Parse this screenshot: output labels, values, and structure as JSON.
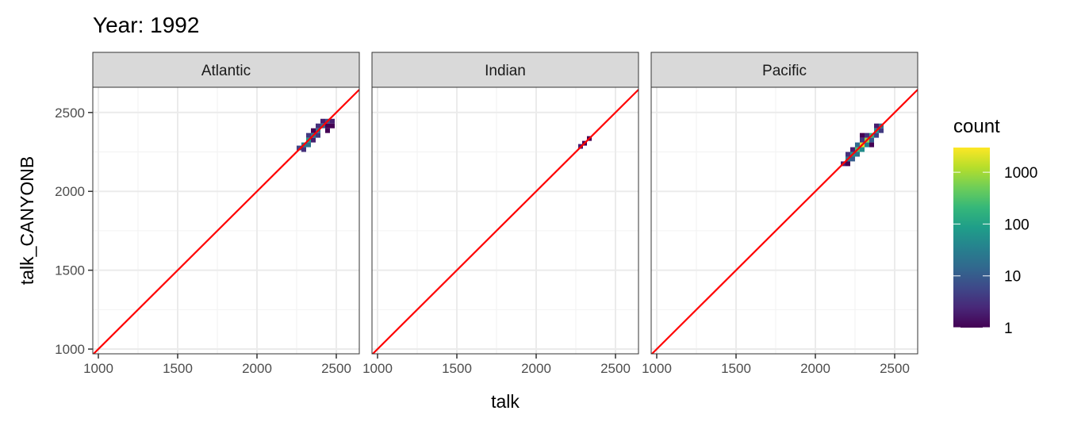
{
  "chart_data": {
    "type": "heatmap",
    "title": "Year: 1992",
    "xlabel": "talk",
    "ylabel": "talk_CANYONB",
    "xlim": [
      965,
      2645
    ],
    "ylim": [
      970,
      2660
    ],
    "x_ticks": [
      1000,
      1500,
      2000,
      2500
    ],
    "y_ticks": [
      1000,
      1500,
      2000,
      2500
    ],
    "grid": true,
    "reference_line": {
      "slope": 1,
      "intercept": 0,
      "color": "#FF0000"
    },
    "legend": {
      "title": "count",
      "placement": "right",
      "scale": "log10",
      "colormap": "viridis",
      "limits": [
        1,
        3000
      ],
      "breaks": [
        1,
        10,
        100,
        1000
      ],
      "labels": [
        "1",
        "10",
        "100",
        "1000"
      ]
    },
    "bin_width": 30,
    "panels": [
      {
        "name": "Atlantic",
        "tiles": [
          [
            2265,
            2275,
            5
          ],
          [
            2295,
            2295,
            30
          ],
          [
            2295,
            2265,
            3
          ],
          [
            2325,
            2325,
            80
          ],
          [
            2325,
            2295,
            20
          ],
          [
            2355,
            2325,
            2
          ],
          [
            2325,
            2355,
            4
          ],
          [
            2355,
            2355,
            30
          ],
          [
            2385,
            2385,
            20
          ],
          [
            2355,
            2385,
            1
          ],
          [
            2385,
            2415,
            3
          ],
          [
            2415,
            2415,
            15
          ],
          [
            2445,
            2445,
            8
          ],
          [
            2415,
            2445,
            2
          ],
          [
            2445,
            2415,
            1
          ],
          [
            2475,
            2445,
            2
          ],
          [
            2475,
            2415,
            1
          ],
          [
            2445,
            2385,
            1
          ],
          [
            2385,
            2355,
            4
          ]
        ]
      },
      {
        "name": "Indian",
        "tiles": [
          [
            2280,
            2285,
            2
          ],
          [
            2305,
            2305,
            1
          ],
          [
            2335,
            2335,
            1
          ]
        ]
      },
      {
        "name": "Pacific",
        "tiles": [
          [
            2175,
            2175,
            2
          ],
          [
            2205,
            2205,
            30
          ],
          [
            2205,
            2175,
            1
          ],
          [
            2235,
            2235,
            60
          ],
          [
            2235,
            2205,
            10
          ],
          [
            2205,
            2235,
            3
          ],
          [
            2265,
            2265,
            300
          ],
          [
            2265,
            2235,
            20
          ],
          [
            2235,
            2265,
            2
          ],
          [
            2295,
            2295,
            2000
          ],
          [
            2295,
            2265,
            50
          ],
          [
            2265,
            2295,
            15
          ],
          [
            2325,
            2325,
            800
          ],
          [
            2325,
            2295,
            30
          ],
          [
            2295,
            2325,
            4
          ],
          [
            2355,
            2355,
            200
          ],
          [
            2355,
            2325,
            10
          ],
          [
            2325,
            2355,
            3
          ],
          [
            2385,
            2385,
            60
          ],
          [
            2385,
            2355,
            5
          ],
          [
            2415,
            2415,
            20
          ],
          [
            2415,
            2385,
            4
          ],
          [
            2385,
            2415,
            2
          ],
          [
            2355,
            2295,
            1
          ],
          [
            2295,
            2355,
            1
          ]
        ]
      }
    ]
  }
}
